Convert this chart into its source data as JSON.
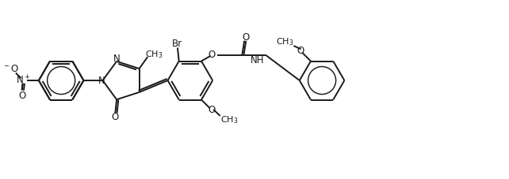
{
  "bg_color": "#ffffff",
  "line_color": "#1a1a1a",
  "line_width": 1.4,
  "font_size": 8.5,
  "figsize": [
    6.42,
    2.27
  ],
  "dpi": 100,
  "xlim": [
    0,
    18
  ],
  "ylim": [
    0,
    5.05
  ]
}
